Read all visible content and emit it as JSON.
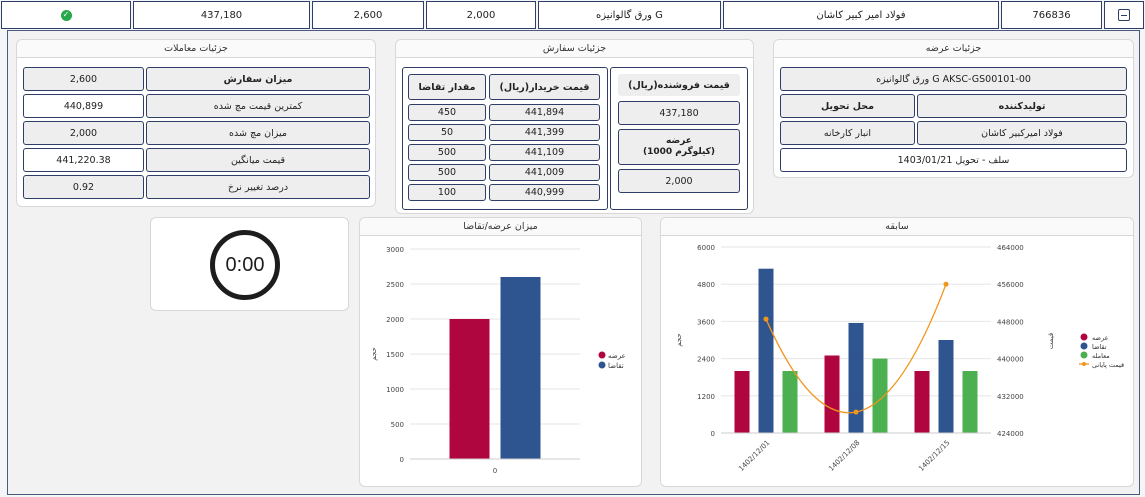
{
  "top_row": {
    "id": "766836",
    "product": "فولاد امیر کبیر کاشان",
    "type": "ورق گالوانیزه G",
    "matched": "2,000",
    "order": "2,600",
    "price": "437,180"
  },
  "offer_details": {
    "title": "جزئیات عرضه",
    "product_code": "ورق گالوانیزه G AKSC-GS00101-00",
    "producer_label": "تولیدکننده",
    "delivery_place_label": "محل تحویل",
    "producer_value": "فولاد امیرکبیر کاشان",
    "delivery_place_value": "انبار کارخانه",
    "delivery": "سلف - تحویل 1403/01/21"
  },
  "order_details": {
    "title": "جزئیات سفارش",
    "seller_price_label": "قیمت فروشنده(ریال)",
    "seller_price": "437,180",
    "supply_label": "عرضه\n(1000 کیلوگرم)",
    "supply": "2,000",
    "buyer_price_label": "قیمت خریدار(ریال)",
    "demand_qty_label": "مقدار تقاضا",
    "rows": [
      {
        "price": "441,894",
        "qty": "450"
      },
      {
        "price": "441,399",
        "qty": "50"
      },
      {
        "price": "441,109",
        "qty": "500"
      },
      {
        "price": "441,009",
        "qty": "500"
      },
      {
        "price": "440,999",
        "qty": "100"
      }
    ]
  },
  "trade_details": {
    "title": "جزئیات معاملات",
    "rows": [
      {
        "label": "میزان سفارش",
        "value": "2,600"
      },
      {
        "label": "کمترین قیمت مچ شده",
        "value": "440,899"
      },
      {
        "label": "میزان مچ شده",
        "value": "2,000"
      },
      {
        "label": "قیمت میانگین",
        "value": "441,220.38"
      },
      {
        "label": "درصد تغییر نرخ",
        "value": "0.92"
      }
    ]
  },
  "timer": {
    "value": "0:00"
  },
  "history_chart_title": "سابقه",
  "supply_demand_chart_title": "میزان عرضه/تقاضا",
  "colors": {
    "supply": "#b0063f",
    "demand": "#2f5590",
    "trade": "#4caf50",
    "final_price": "#f2951b"
  },
  "chart_data": [
    {
      "type": "bar",
      "title": "میزان عرضه/تقاضا",
      "categories": [
        "0"
      ],
      "ylabel": "حجم",
      "ylim": [
        0,
        3000
      ],
      "yticks": [
        0,
        500,
        1000,
        1500,
        2000,
        2500,
        3000
      ],
      "legend_position": "right",
      "series": [
        {
          "name": "عرضه",
          "values": [
            2000
          ],
          "color": "#b0063f"
        },
        {
          "name": "تقاضا",
          "values": [
            2600
          ],
          "color": "#2f5590"
        }
      ]
    },
    {
      "type": "bar",
      "title": "سابقه",
      "categories": [
        "1402/12/01",
        "1402/12/08",
        "1402/12/15"
      ],
      "ylabel": "حجم",
      "ylabel_right": "قیمت",
      "ylim": [
        0,
        6000
      ],
      "yticks": [
        0,
        1200,
        2400,
        3600,
        4800,
        6000
      ],
      "ylim_right": [
        424000,
        464000
      ],
      "yticks_right": [
        424000,
        432000,
        440000,
        448000,
        456000,
        464000
      ],
      "legend_position": "right",
      "series": [
        {
          "name": "عرضه",
          "values": [
            2000,
            2500,
            2000
          ],
          "color": "#b0063f"
        },
        {
          "name": "تقاضا",
          "values": [
            5300,
            3550,
            3000
          ],
          "color": "#2f5590"
        },
        {
          "name": "معامله",
          "values": [
            2000,
            2400,
            2000
          ],
          "color": "#4caf50"
        },
        {
          "name": "قیمت پایانی",
          "type": "line",
          "axis": "right",
          "values": [
            448500,
            428500,
            456000
          ],
          "color": "#f2951b"
        }
      ]
    }
  ]
}
